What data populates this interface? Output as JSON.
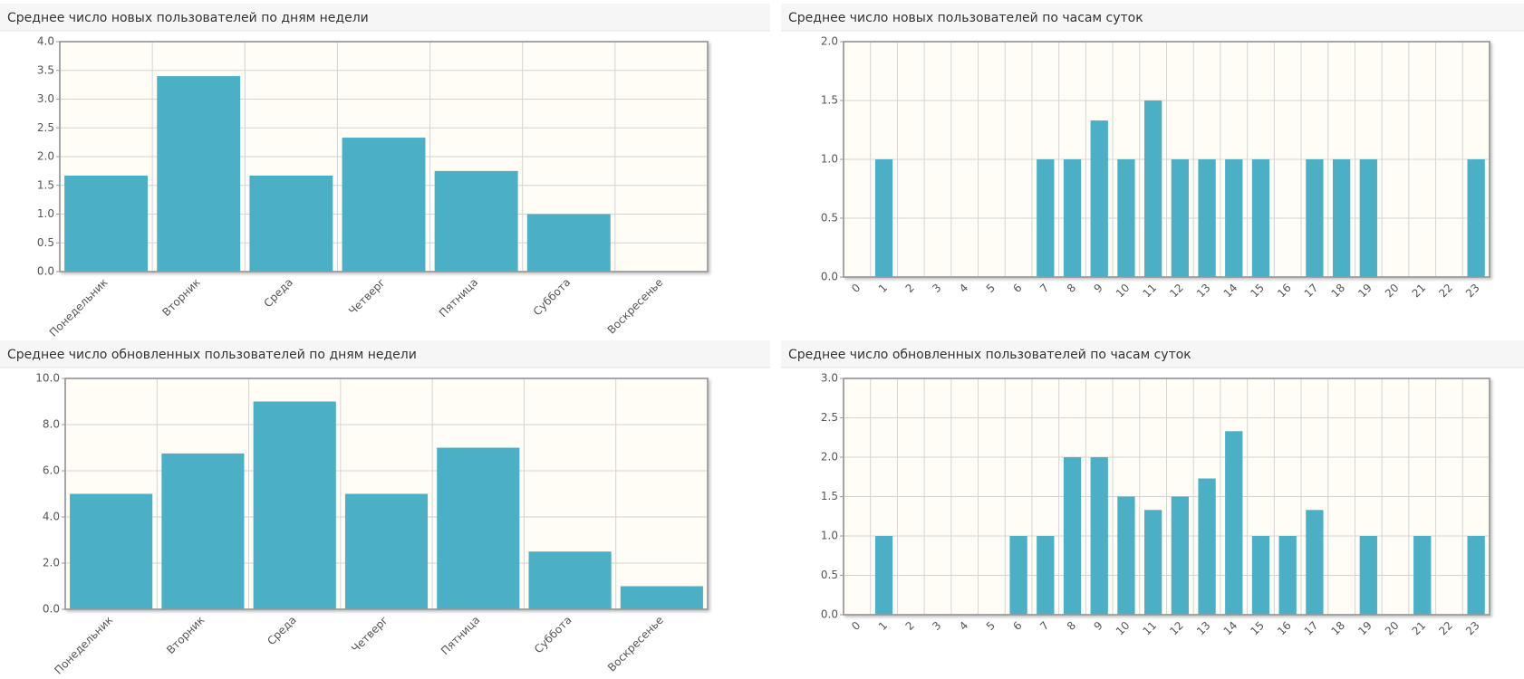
{
  "chart_data": [
    {
      "type": "bar",
      "title": "Среднее число новых пользователей по дням недели",
      "categories": [
        "Понедельник",
        "Вторник",
        "Среда",
        "Четверг",
        "Пятница",
        "Суббота",
        "Воскресенье"
      ],
      "values": [
        1.67,
        3.4,
        1.67,
        2.33,
        1.75,
        1.0,
        0
      ],
      "color": "#4bb0c6",
      "ylim": [
        0,
        4
      ],
      "yticks": [
        {
          "value": 0,
          "label": "0.0"
        },
        {
          "value": 0.5,
          "label": "0.5"
        },
        {
          "value": 1,
          "label": "1.0"
        },
        {
          "value": 1.5,
          "label": "1.5"
        },
        {
          "value": 2,
          "label": "2.0"
        },
        {
          "value": 2.5,
          "label": "2.5"
        },
        {
          "value": 3,
          "label": "3.0"
        },
        {
          "value": 3.5,
          "label": "3.5"
        },
        {
          "value": 4,
          "label": "4.0"
        }
      ],
      "grid": true
    },
    {
      "type": "bar",
      "title": "Среднее число новых пользователей по часам суток",
      "categories": [
        "0",
        "1",
        "2",
        "3",
        "4",
        "5",
        "6",
        "7",
        "8",
        "9",
        "10",
        "11",
        "12",
        "13",
        "14",
        "15",
        "16",
        "17",
        "18",
        "19",
        "20",
        "21",
        "22",
        "23"
      ],
      "values": [
        0,
        1,
        0,
        0,
        0,
        0,
        0,
        1,
        1,
        1.33,
        1,
        1.5,
        1,
        1,
        1,
        1,
        0,
        1,
        1,
        1,
        0,
        0,
        0,
        1
      ],
      "color": "#4bb0c6",
      "ylim": [
        0,
        2
      ],
      "yticks": [
        {
          "value": 0,
          "label": "0.0"
        },
        {
          "value": 0.5,
          "label": "0.5"
        },
        {
          "value": 1,
          "label": "1.0"
        },
        {
          "value": 1.5,
          "label": "1.5"
        },
        {
          "value": 2,
          "label": "2.0"
        }
      ],
      "grid": true
    },
    {
      "type": "bar",
      "title": "Среднее число обновленных пользователей по дням недели",
      "categories": [
        "Понедельник",
        "Вторник",
        "Среда",
        "Четверг",
        "Пятница",
        "Суббота",
        "Воскресенье"
      ],
      "values": [
        5,
        6.75,
        9,
        5,
        7,
        2.5,
        1
      ],
      "color": "#4bb0c6",
      "ylim": [
        0,
        10
      ],
      "yticks": [
        {
          "value": 0,
          "label": "0.0"
        },
        {
          "value": 2,
          "label": "2.0"
        },
        {
          "value": 4,
          "label": "4.0"
        },
        {
          "value": 6,
          "label": "6.0"
        },
        {
          "value": 8,
          "label": "8.0"
        },
        {
          "value": 10,
          "label": "10.0"
        }
      ],
      "grid": true
    },
    {
      "type": "bar",
      "title": "Среднее число обновленных пользователей по часам суток",
      "categories": [
        "0",
        "1",
        "2",
        "3",
        "4",
        "5",
        "6",
        "7",
        "8",
        "9",
        "10",
        "11",
        "12",
        "13",
        "14",
        "15",
        "16",
        "17",
        "18",
        "19",
        "20",
        "21",
        "22",
        "23"
      ],
      "values": [
        0,
        1,
        0,
        0,
        0,
        0,
        1,
        1,
        2,
        2,
        1.5,
        1.33,
        1.5,
        1.73,
        2.33,
        1,
        1,
        1.33,
        0,
        1,
        0,
        1,
        0,
        1
      ],
      "color": "#4bb0c6",
      "ylim": [
        0,
        3
      ],
      "yticks": [
        {
          "value": 0,
          "label": "0.0"
        },
        {
          "value": 0.5,
          "label": "0.5"
        },
        {
          "value": 1,
          "label": "1.0"
        },
        {
          "value": 1.5,
          "label": "1.5"
        },
        {
          "value": 2,
          "label": "2.0"
        },
        {
          "value": 2.5,
          "label": "2.5"
        },
        {
          "value": 3,
          "label": "3.0"
        }
      ],
      "grid": true
    }
  ]
}
